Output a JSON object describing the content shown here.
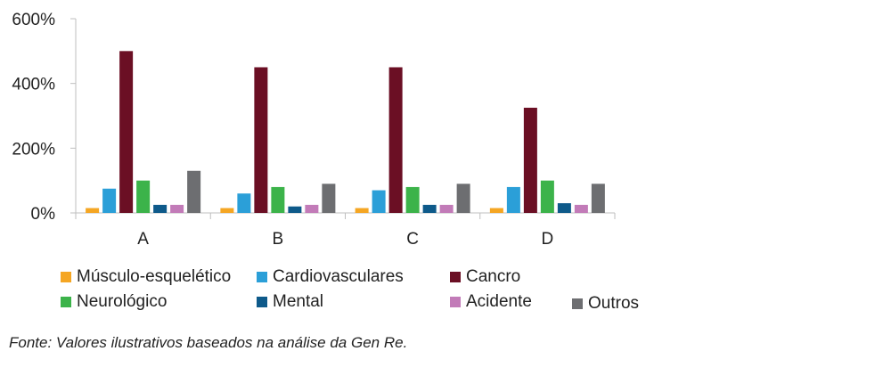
{
  "chart_data": {
    "type": "bar",
    "categories": [
      "A",
      "B",
      "C",
      "D"
    ],
    "y_ticks": [
      "600%",
      "400%",
      "200%",
      "0%"
    ],
    "ylim": [
      0,
      600
    ],
    "series": [
      {
        "name": "Músculo-esquelético",
        "color": "#F5A623",
        "values": [
          15,
          15,
          15,
          15
        ]
      },
      {
        "name": "Cardiovasculares",
        "color": "#2B9FD8",
        "values": [
          75,
          60,
          70,
          80
        ]
      },
      {
        "name": "Cancro",
        "color": "#6B0F24",
        "values": [
          500,
          450,
          450,
          325
        ]
      },
      {
        "name": "Neurológico",
        "color": "#3CB34A",
        "values": [
          100,
          80,
          80,
          100
        ]
      },
      {
        "name": "Mental",
        "color": "#0E5A8A",
        "values": [
          25,
          20,
          25,
          30
        ]
      },
      {
        "name": "Acidente",
        "color": "#C27BB8",
        "values": [
          25,
          25,
          25,
          25
        ]
      },
      {
        "name": "Outros",
        "color": "#6D6E71",
        "values": [
          130,
          90,
          90,
          90
        ]
      }
    ],
    "grid": false,
    "legend_position": "bottom"
  },
  "source_note": "Fonte: Valores ilustrativos baseados na análise da Gen Re."
}
